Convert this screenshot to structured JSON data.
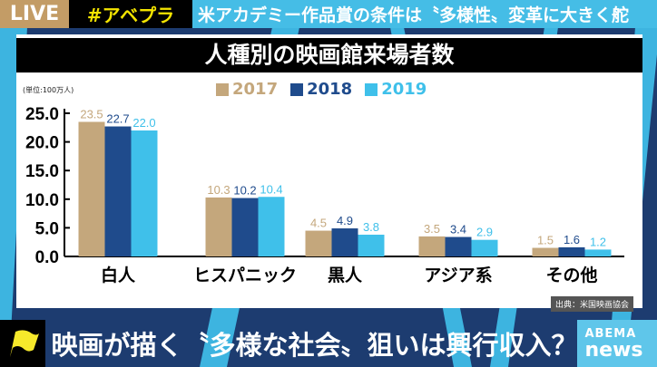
{
  "header": {
    "live": "LIVE",
    "tag": "#アベプラ",
    "headline": "米アカデミー作品賞の条件は〝多様性〟変革に大きく舵"
  },
  "footer": {
    "caption": "映画が描く〝多様な社会〟狙いは興行収入？",
    "logo_top": "ABEMA",
    "logo_bottom": "news",
    "flag_icon": "yellow-flag"
  },
  "colors": {
    "2017": "#c4a77c",
    "2018": "#1f4b8c",
    "2019": "#3fc0ea",
    "background": "#1d3c70",
    "accent": "#45bde6"
  },
  "chart_data": {
    "type": "bar",
    "title": "人種別の映画館来場者数",
    "unit": "(単位:100万人)",
    "source": "出典：米国映画協会",
    "categories": [
      "白人",
      "ヒスパニック",
      "黒人",
      "アジア系",
      "その他"
    ],
    "series": [
      {
        "name": "2017",
        "values": [
          23.5,
          10.3,
          4.5,
          3.5,
          1.5
        ]
      },
      {
        "name": "2018",
        "values": [
          22.7,
          10.2,
          4.9,
          3.4,
          1.6
        ]
      },
      {
        "name": "2019",
        "values": [
          22.0,
          10.4,
          3.8,
          2.9,
          1.2
        ]
      }
    ],
    "yticks": [
      "0.0",
      "5.0",
      "10.0",
      "15.0",
      "20.0",
      "25.0"
    ],
    "ylim": [
      0,
      25
    ],
    "legend": "top-center",
    "grid": false
  }
}
